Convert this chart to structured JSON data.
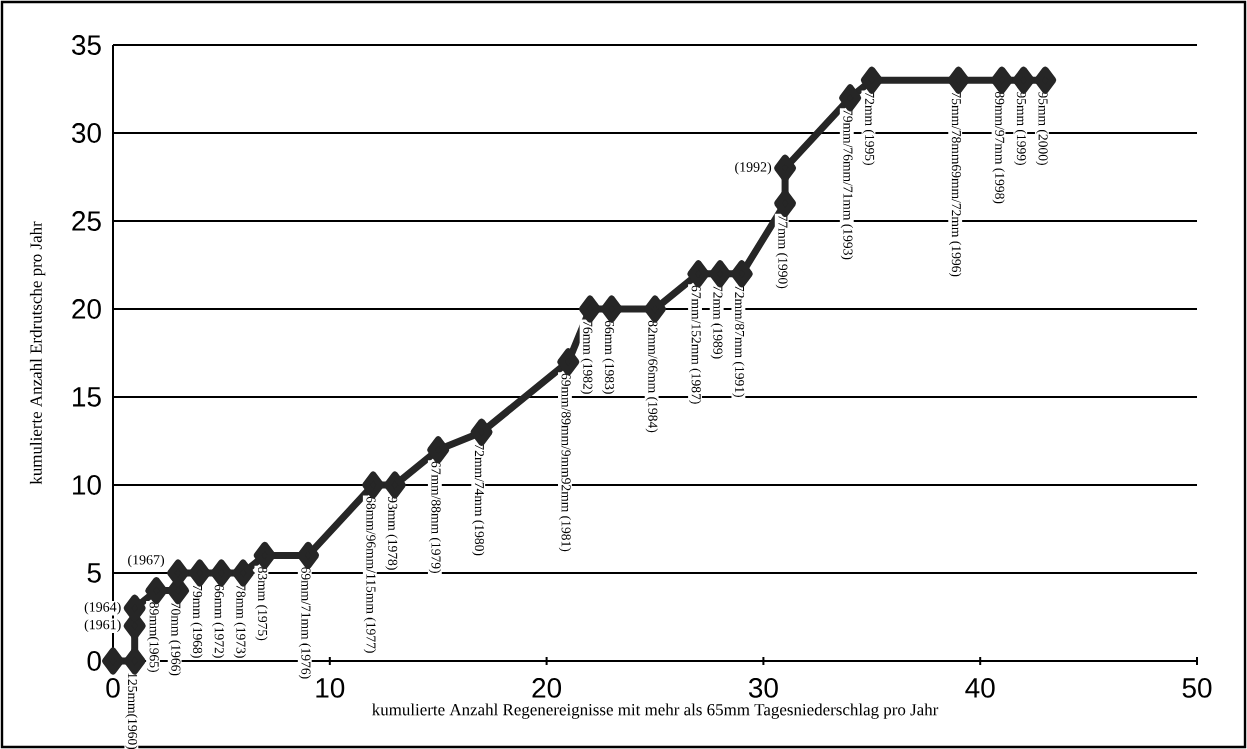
{
  "chart_data": {
    "type": "line",
    "xlabel": "kumulierte Anzahl Regenereignisse mit mehr als 65mm Tagesniederschlag pro Jahr",
    "ylabel": "kumulierte Anzahl Erdrutsche pro Jahr",
    "color": "#262626",
    "marker": "diamond",
    "grid": "y",
    "xlim": [
      0,
      50
    ],
    "ylim": [
      0,
      35
    ],
    "xticks": [
      0,
      10,
      20,
      30,
      40,
      50
    ],
    "yticks": [
      0,
      5,
      10,
      15,
      20,
      25,
      30,
      35
    ],
    "x": [
      0,
      1,
      1,
      1,
      2,
      3,
      3,
      4,
      5,
      6,
      7,
      9,
      12,
      13,
      15,
      17,
      21,
      22,
      23,
      25,
      27,
      28,
      29,
      31,
      31,
      34,
      35,
      39,
      41,
      42,
      43
    ],
    "values": [
      0,
      0,
      2,
      3,
      4,
      4,
      5,
      5,
      5,
      5,
      6,
      6,
      10,
      10,
      12,
      13,
      17,
      20,
      20,
      20,
      22,
      22,
      22,
      26,
      28,
      32,
      33,
      33,
      33,
      33,
      33
    ],
    "annotations": [
      {
        "text": "125mm(1960)",
        "x": 1,
        "y": 0
      },
      {
        "text": "(1961)",
        "x": 1,
        "y": 2
      },
      {
        "text": "(1964)",
        "x": 1,
        "y": 3
      },
      {
        "text": "89mm(1965)",
        "x": 2,
        "y": 4
      },
      {
        "text": "70mm (1966)",
        "x": 3,
        "y": 4
      },
      {
        "text": "(1967)",
        "x": 3,
        "y": 5
      },
      {
        "text": "79mm (1968)",
        "x": 4,
        "y": 5
      },
      {
        "text": "66mm (1972)",
        "x": 5,
        "y": 5
      },
      {
        "text": "78mm (1973)",
        "x": 6,
        "y": 5
      },
      {
        "text": "83mm (1975)",
        "x": 7,
        "y": 6
      },
      {
        "text": "69mm/71mm (1976)",
        "x": 9,
        "y": 6
      },
      {
        "text": "68mm/96mm/115mm (1977)",
        "x": 12,
        "y": 10
      },
      {
        "text": "93mm (1978)",
        "x": 13,
        "y": 10
      },
      {
        "text": "67mm/88mm (1979)",
        "x": 15,
        "y": 12
      },
      {
        "text": "72mm/74mm (1980)",
        "x": 17,
        "y": 13
      },
      {
        "text": "69mm/89mm/9mm92mm (1981)",
        "x": 21,
        "y": 17
      },
      {
        "text": "76mm (1982)",
        "x": 22,
        "y": 20
      },
      {
        "text": "66mm (1983)",
        "x": 23,
        "y": 20
      },
      {
        "text": "82mm/66mm (1984)",
        "x": 25,
        "y": 20
      },
      {
        "text": "67mm/152mm (1987)",
        "x": 27,
        "y": 22
      },
      {
        "text": "72mm (1989)",
        "x": 28,
        "y": 22
      },
      {
        "text": "72mm/87mm (1991)",
        "x": 29,
        "y": 22
      },
      {
        "text": "77mm (1990)",
        "x": 31,
        "y": 26
      },
      {
        "text": "(1992)",
        "x": 31,
        "y": 28
      },
      {
        "text": "79mm/76mm/71mm (1993)",
        "x": 34,
        "y": 32
      },
      {
        "text": "72mm (1995)",
        "x": 35,
        "y": 33
      },
      {
        "text": "75mm/78mm69mm/72mm (1996)",
        "x": 39,
        "y": 33
      },
      {
        "text": "89mm/97mm (1998)",
        "x": 41,
        "y": 33
      },
      {
        "text": "95mm (1999)",
        "x": 42,
        "y": 33
      },
      {
        "text": "95mm (2000)",
        "x": 43,
        "y": 33
      }
    ]
  }
}
